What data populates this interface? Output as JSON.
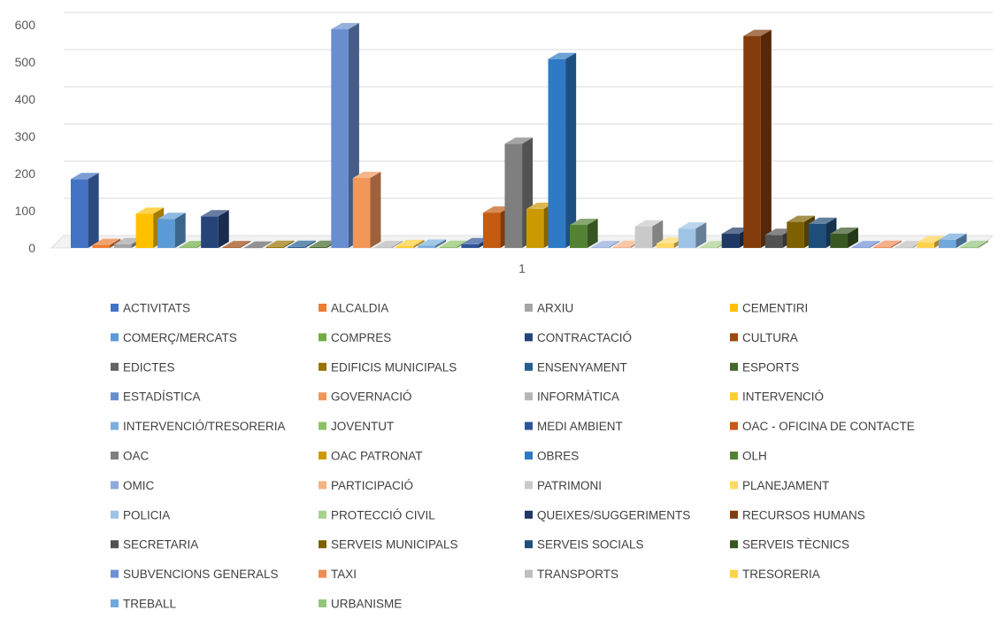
{
  "chart_data": {
    "type": "bar",
    "title": "",
    "xlabel": "",
    "ylabel": "",
    "categories": [
      "1"
    ],
    "ylim": [
      0,
      600
    ],
    "yticks": [
      0,
      100,
      200,
      300,
      400,
      500,
      600
    ],
    "grid": true,
    "legend_position": "bottom",
    "series": [
      {
        "name": "ACTIVITATS",
        "values": [
          185
        ],
        "color": "#4472C4"
      },
      {
        "name": "ALCALDIA",
        "values": [
          8
        ],
        "color": "#ED7D31"
      },
      {
        "name": "ARXIU",
        "values": [
          10
        ],
        "color": "#A5A5A5"
      },
      {
        "name": "CEMENTIRI",
        "values": [
          92
        ],
        "color": "#FFC000"
      },
      {
        "name": "COMERÇ/MERCATS",
        "values": [
          78
        ],
        "color": "#5B9BD5"
      },
      {
        "name": "COMPRES",
        "values": [
          2
        ],
        "color": "#70AD47"
      },
      {
        "name": "CONTRACTACIÓ",
        "values": [
          85
        ],
        "color": "#264478"
      },
      {
        "name": "CULTURA",
        "values": [
          2
        ],
        "color": "#9E480E"
      },
      {
        "name": "EDICTES",
        "values": [
          1
        ],
        "color": "#636363"
      },
      {
        "name": "EDIFICIS MUNICIPALS",
        "values": [
          3
        ],
        "color": "#997300"
      },
      {
        "name": "ENSENYAMENT",
        "values": [
          3
        ],
        "color": "#255E91"
      },
      {
        "name": "ESPORTS",
        "values": [
          3
        ],
        "color": "#43682B"
      },
      {
        "name": "ESTADÍSTICA",
        "values": [
          588
        ],
        "color": "#698ED0"
      },
      {
        "name": "GOVERNACIÓ",
        "values": [
          188
        ],
        "color": "#F1975A"
      },
      {
        "name": "INFORMÀTICA",
        "values": [
          2
        ],
        "color": "#B7B7B7"
      },
      {
        "name": "INTERVENCIÓ",
        "values": [
          5
        ],
        "color": "#FFCD33"
      },
      {
        "name": "INTERVENCIÓ/TRESORERIA",
        "values": [
          6
        ],
        "color": "#7CAFDD"
      },
      {
        "name": "JOVENTUT",
        "values": [
          3
        ],
        "color": "#8CC168"
      },
      {
        "name": "MEDI AMBIENT",
        "values": [
          10
        ],
        "color": "#2E5597"
      },
      {
        "name": "OAC - OFICINA DE CONTACTE",
        "values": [
          95
        ],
        "color": "#C55A11"
      },
      {
        "name": "OAC",
        "values": [
          280
        ],
        "color": "#7F7F7F"
      },
      {
        "name": "OAC PATRONAT",
        "values": [
          105
        ],
        "color": "#CC9A00"
      },
      {
        "name": "OBRES",
        "values": [
          508
        ],
        "color": "#2E7AC6"
      },
      {
        "name": "OLH",
        "values": [
          62
        ],
        "color": "#548235"
      },
      {
        "name": "OMIC",
        "values": [
          2
        ],
        "color": "#8FAADC"
      },
      {
        "name": "PARTICIPACIÓ",
        "values": [
          3
        ],
        "color": "#F4B183"
      },
      {
        "name": "PATRIMONI",
        "values": [
          58
        ],
        "color": "#C9C9C9"
      },
      {
        "name": "PLANEJAMENT",
        "values": [
          12
        ],
        "color": "#FFD966"
      },
      {
        "name": "POLICIA",
        "values": [
          52
        ],
        "color": "#9DC3E6"
      },
      {
        "name": "PROTECCIÓ CIVIL",
        "values": [
          2
        ],
        "color": "#A9D18E"
      },
      {
        "name": "QUEIXES/SUGGERIMENTS",
        "values": [
          38
        ],
        "color": "#1F3864"
      },
      {
        "name": "RECURSOS HUMANS",
        "values": [
          570
        ],
        "color": "#843C0C"
      },
      {
        "name": "SECRETARIA",
        "values": [
          35
        ],
        "color": "#525252"
      },
      {
        "name": "SERVEIS MUNICIPALS",
        "values": [
          70
        ],
        "color": "#7F6000"
      },
      {
        "name": "SERVEIS SOCIALS",
        "values": [
          65
        ],
        "color": "#1F4E79"
      },
      {
        "name": "SERVEIS TÈCNICS",
        "values": [
          38
        ],
        "color": "#385723"
      },
      {
        "name": "SUBVENCIONS GENERALS",
        "values": [
          2
        ],
        "color": "#6F8FD4"
      },
      {
        "name": "TAXI",
        "values": [
          3
        ],
        "color": "#F08C58"
      },
      {
        "name": "TRANSPORTS",
        "values": [
          2
        ],
        "color": "#BFBFBF"
      },
      {
        "name": "TRESORERIA",
        "values": [
          15
        ],
        "color": "#FFD24D"
      },
      {
        "name": "TREBALL",
        "values": [
          22
        ],
        "color": "#6FA8DC"
      },
      {
        "name": "URBANISME",
        "values": [
          3
        ],
        "color": "#93C47D"
      }
    ]
  }
}
